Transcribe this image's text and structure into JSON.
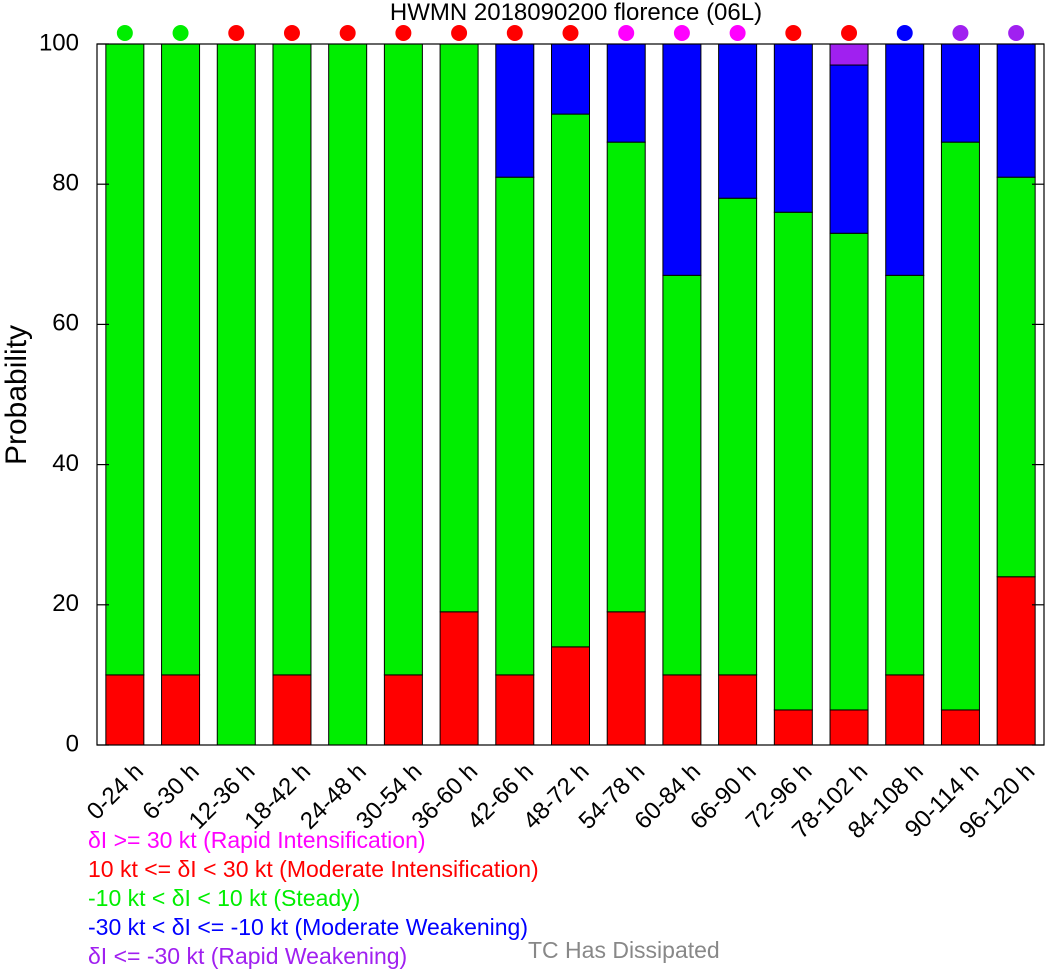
{
  "chart_data": {
    "type": "bar",
    "stacked": true,
    "title": "HWMN 2018090200 florence (06L)",
    "xlabel": "",
    "ylabel": "Probability",
    "ylim": [
      0,
      100
    ],
    "yticks": [
      "0",
      "20",
      "40",
      "60",
      "80",
      "100"
    ],
    "grid": false,
    "categories": [
      "0-24 h",
      "6-30 h",
      "12-36 h",
      "18-42 h",
      "24-48 h",
      "30-54 h",
      "36-60 h",
      "42-66 h",
      "48-72 h",
      "54-78 h",
      "60-84 h",
      "66-90 h",
      "72-96 h",
      "78-102 h",
      "84-108 h",
      "90-114 h",
      "96-120 h"
    ],
    "series": [
      {
        "name": "δI >= 30 kt (Rapid Intensification)",
        "color": "#ff00ff",
        "values": [
          0,
          0,
          0,
          0,
          0,
          0,
          0,
          0,
          0,
          0,
          0,
          0,
          0,
          0,
          0,
          0,
          0
        ]
      },
      {
        "name": "10 kt <= δI < 30 kt (Moderate Intensification)",
        "color": "#ff0000",
        "values": [
          10,
          10,
          0,
          10,
          0,
          10,
          19,
          10,
          14,
          19,
          10,
          10,
          5,
          5,
          10,
          5,
          24
        ]
      },
      {
        "name": "-10 kt < δI < 10 kt (Steady)",
        "color": "#00ee00",
        "values": [
          90,
          90,
          100,
          90,
          100,
          90,
          81,
          71,
          76,
          67,
          57,
          68,
          71,
          68,
          57,
          81,
          57
        ]
      },
      {
        "name": "-30 kt < δI <= -10 kt (Moderate Weakening)",
        "color": "#0000ff",
        "values": [
          0,
          0,
          0,
          0,
          0,
          0,
          0,
          19,
          10,
          14,
          33,
          22,
          24,
          24,
          33,
          14,
          19
        ]
      },
      {
        "name": "δI <= -30 kt (Rapid Weakening)",
        "color": "#a020f0",
        "values": [
          0,
          0,
          0,
          0,
          0,
          0,
          0,
          0,
          0,
          0,
          0,
          0,
          0,
          3,
          0,
          0,
          0
        ]
      },
      {
        "name": "TC Has Dissipated",
        "color": "#888888",
        "values": [
          0,
          0,
          0,
          0,
          0,
          0,
          0,
          0,
          0,
          0,
          0,
          0,
          0,
          0,
          0,
          0,
          0
        ]
      }
    ],
    "dot_colors": [
      "#00ee00",
      "#00ee00",
      "#ff0000",
      "#ff0000",
      "#ff0000",
      "#ff0000",
      "#ff0000",
      "#ff0000",
      "#ff0000",
      "#ff00ff",
      "#ff00ff",
      "#ff00ff",
      "#ff0000",
      "#ff0000",
      "#0000ff",
      "#a020f0",
      "#a020f0"
    ]
  },
  "legend": {
    "items": [
      {
        "label": "δI >= 30 kt (Rapid Intensification)",
        "color": "#ff00ff"
      },
      {
        "label": "10 kt <= δI < 30 kt (Moderate Intensification)",
        "color": "#ff0000"
      },
      {
        "label": "-10 kt < δI < 10 kt (Steady)",
        "color": "#00ee00"
      },
      {
        "label": "-30 kt < δI <= -10 kt (Moderate Weakening)",
        "color": "#0000ff"
      },
      {
        "label": "δI <= -30 kt (Rapid Weakening)",
        "color": "#a020f0"
      }
    ],
    "dissipated": {
      "label": "TC Has Dissipated",
      "color": "#888888"
    }
  }
}
